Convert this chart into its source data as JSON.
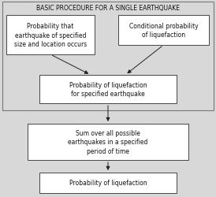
{
  "title": "BASIC PROCEDURE FOR A SINGLE EARTHQUAKE",
  "box1_text": "Probability that\nearthquake of specified\nsize and location occurs",
  "box2_text": "Conditional probability\nof liquefaction",
  "box3_text": "Probability of liquefaction\nfor specified earthquake",
  "box4_text": "Sum over all possible\nearthquakes in a specified\nperiod of time",
  "box5_text": "Probability of liquefaction",
  "bg_color": "#d8d8d8",
  "box_bg": "#ffffff",
  "border_color": "#444444",
  "text_color": "#111111",
  "arrow_color": "#222222",
  "outer_rect_color": "#777777",
  "font_size": 5.5,
  "title_font_size": 5.5
}
